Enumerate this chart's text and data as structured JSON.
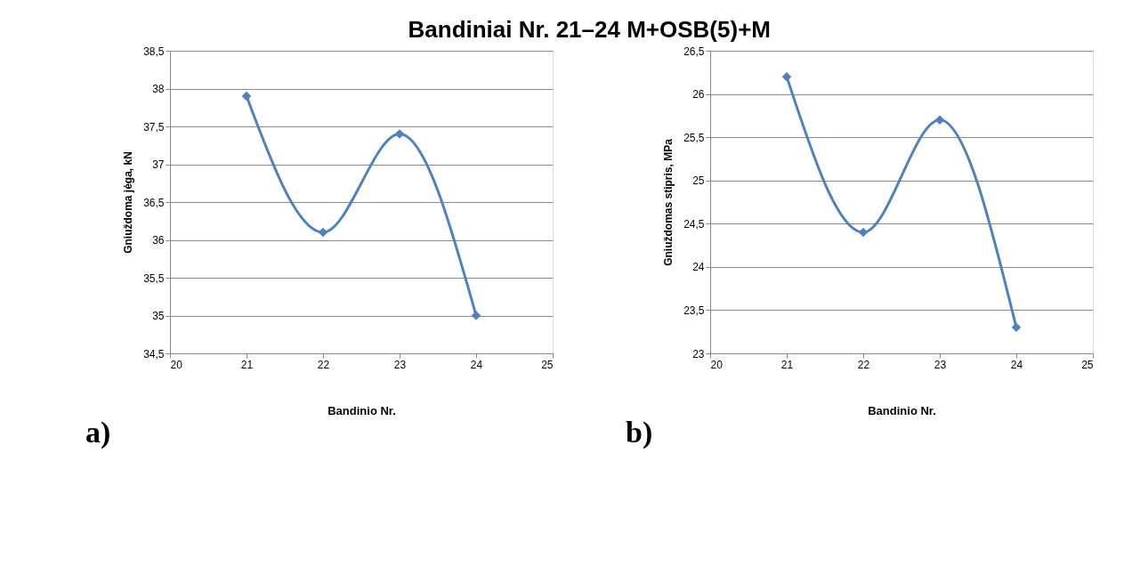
{
  "chart_data": [
    {
      "type": "line",
      "title": "Bandiniai Nr. 21–24 M+OSB(5)+M",
      "xlabel": "Bandinio Nr.",
      "ylabel": "Gniuždoma jėga,  kN",
      "annotations": [
        "a)"
      ],
      "x": [
        21,
        22,
        23,
        24
      ],
      "series": [
        {
          "color": "#4f81bd",
          "values": [
            37.9,
            36.1,
            37.4,
            35.0
          ]
        }
      ],
      "xlim": [
        20,
        25
      ],
      "xticks": [
        20,
        21,
        22,
        23,
        24,
        25
      ],
      "ylim": [
        34.5,
        38.5
      ],
      "yticks": [
        {
          "value": 34.5,
          "label": "34,5"
        },
        35,
        {
          "value": 35.5,
          "label": "35,5"
        },
        36,
        {
          "value": 36.5,
          "label": "36,5"
        },
        37,
        {
          "value": 37.5,
          "label": "37,5"
        },
        38,
        {
          "value": 38.5,
          "label": "38,5"
        }
      ],
      "grid": "y",
      "marker": "diamond",
      "line_style": "solid"
    },
    {
      "type": "line",
      "xlabel": "Bandinio Nr.",
      "ylabel": "Gniuždomas stipris,  MPa",
      "annotations": [
        "b)"
      ],
      "x": [
        21,
        22,
        23,
        24
      ],
      "series": [
        {
          "color": "#4f81bd",
          "values": [
            26.2,
            24.4,
            25.7,
            23.3
          ]
        }
      ],
      "xlim": [
        20,
        25
      ],
      "xticks": [
        20,
        21,
        22,
        23,
        24,
        25
      ],
      "ylim": [
        23,
        26.5
      ],
      "yticks": [
        23,
        {
          "value": 23.5,
          "label": "23,5"
        },
        24,
        {
          "value": 24.5,
          "label": "24,5"
        },
        25,
        {
          "value": 25.5,
          "label": "25,5"
        },
        26,
        {
          "value": 26.5,
          "label": "26,5"
        }
      ],
      "grid": "y",
      "marker": "diamond",
      "line_style": "solid"
    }
  ]
}
